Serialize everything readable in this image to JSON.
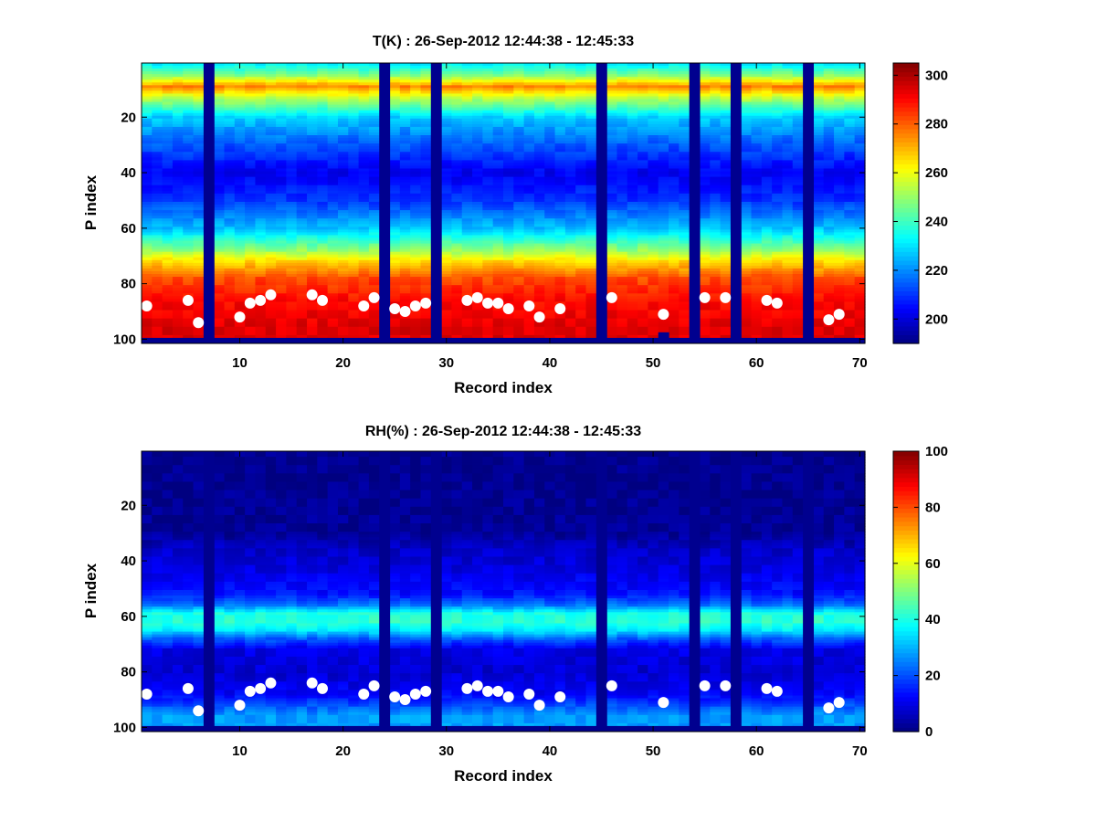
{
  "chart_data": [
    {
      "type": "heatmap",
      "title": "T(K) : 26-Sep-2012 12:44:38 - 12:45:33",
      "xlabel": "Record index",
      "ylabel": "P index",
      "xlim": [
        0.5,
        70.5
      ],
      "ylim": [
        0.5,
        101.5
      ],
      "y_reversed": true,
      "xticks": [
        10,
        20,
        30,
        40,
        50,
        60,
        70
      ],
      "yticks": [
        20,
        40,
        60,
        80,
        100
      ],
      "colormap": "jet",
      "clim": [
        190,
        305
      ],
      "colorbar_ticks": [
        200,
        220,
        240,
        260,
        280,
        300
      ],
      "missing_records": [
        7,
        24,
        29,
        45,
        54,
        58,
        65
      ],
      "profile_model": {
        "p": [
          1,
          5,
          9,
          13,
          20,
          30,
          40,
          50,
          60,
          68,
          72,
          78,
          86,
          96
        ],
        "value": [
          232,
          248,
          276,
          255,
          228,
          214,
          203,
          210,
          226,
          250,
          266,
          282,
          290,
          294
        ]
      },
      "bottom_level_by_record": [
        99,
        99,
        99,
        99,
        99,
        99,
        99,
        99,
        99,
        99,
        99,
        99,
        99,
        99,
        99,
        99,
        99,
        99,
        99,
        99,
        99,
        99,
        99,
        99,
        99,
        99,
        99,
        99,
        99,
        99,
        99,
        99,
        99,
        99,
        99,
        99,
        99,
        99,
        99,
        99,
        99,
        99,
        99,
        99,
        99,
        99,
        99,
        99,
        99,
        99,
        97,
        99,
        99,
        99,
        99,
        99,
        99,
        99,
        99,
        99,
        99,
        99,
        99,
        99,
        99,
        99,
        99,
        99,
        99,
        99
      ],
      "surface_points": [
        {
          "record": 1,
          "p": 88
        },
        {
          "record": 5,
          "p": 86
        },
        {
          "record": 6,
          "p": 94
        },
        {
          "record": 10,
          "p": 92
        },
        {
          "record": 11,
          "p": 87
        },
        {
          "record": 12,
          "p": 86
        },
        {
          "record": 13,
          "p": 84
        },
        {
          "record": 17,
          "p": 84
        },
        {
          "record": 18,
          "p": 86
        },
        {
          "record": 22,
          "p": 88
        },
        {
          "record": 23,
          "p": 85
        },
        {
          "record": 25,
          "p": 89
        },
        {
          "record": 26,
          "p": 90
        },
        {
          "record": 27,
          "p": 88
        },
        {
          "record": 28,
          "p": 87
        },
        {
          "record": 32,
          "p": 86
        },
        {
          "record": 33,
          "p": 85
        },
        {
          "record": 34,
          "p": 87
        },
        {
          "record": 35,
          "p": 87
        },
        {
          "record": 36,
          "p": 89
        },
        {
          "record": 38,
          "p": 88
        },
        {
          "record": 39,
          "p": 92
        },
        {
          "record": 41,
          "p": 89
        },
        {
          "record": 46,
          "p": 85
        },
        {
          "record": 51,
          "p": 91
        },
        {
          "record": 55,
          "p": 85
        },
        {
          "record": 57,
          "p": 85
        },
        {
          "record": 61,
          "p": 86
        },
        {
          "record": 62,
          "p": 87
        },
        {
          "record": 67,
          "p": 93
        },
        {
          "record": 68,
          "p": 91
        }
      ]
    },
    {
      "type": "heatmap",
      "title": "RH(%) : 26-Sep-2012 12:44:38 - 12:45:33",
      "xlabel": "Record index",
      "ylabel": "P index",
      "xlim": [
        0.5,
        70.5
      ],
      "ylim": [
        0.5,
        101.5
      ],
      "y_reversed": true,
      "xticks": [
        10,
        20,
        30,
        40,
        50,
        60,
        70
      ],
      "yticks": [
        20,
        40,
        60,
        80,
        100
      ],
      "colormap": "jet",
      "clim": [
        0,
        100
      ],
      "colorbar_ticks": [
        0,
        20,
        40,
        60,
        80,
        100
      ],
      "missing_records": [
        7,
        24,
        29,
        45,
        54,
        58,
        65
      ],
      "profile_model": {
        "p": [
          1,
          30,
          36,
          44,
          52,
          56,
          59,
          62,
          65,
          68,
          72,
          80,
          88,
          96
        ],
        "value": [
          1,
          2,
          7,
          10,
          14,
          24,
          40,
          42,
          36,
          22,
          10,
          8,
          12,
          28
        ]
      },
      "bottom_level_by_record": [
        99,
        99,
        99,
        99,
        99,
        99,
        99,
        99,
        99,
        99,
        99,
        99,
        99,
        99,
        99,
        99,
        99,
        99,
        99,
        99,
        99,
        99,
        99,
        99,
        99,
        99,
        99,
        99,
        99,
        99,
        99,
        99,
        99,
        99,
        99,
        99,
        99,
        99,
        99,
        99,
        99,
        99,
        99,
        99,
        99,
        99,
        99,
        99,
        99,
        99,
        99,
        99,
        99,
        99,
        99,
        99,
        99,
        99,
        99,
        99,
        99,
        99,
        99,
        99,
        99,
        99,
        99,
        99,
        99,
        99
      ],
      "surface_points": [
        {
          "record": 1,
          "p": 88
        },
        {
          "record": 5,
          "p": 86
        },
        {
          "record": 6,
          "p": 94
        },
        {
          "record": 10,
          "p": 92
        },
        {
          "record": 11,
          "p": 87
        },
        {
          "record": 12,
          "p": 86
        },
        {
          "record": 13,
          "p": 84
        },
        {
          "record": 17,
          "p": 84
        },
        {
          "record": 18,
          "p": 86
        },
        {
          "record": 22,
          "p": 88
        },
        {
          "record": 23,
          "p": 85
        },
        {
          "record": 25,
          "p": 89
        },
        {
          "record": 26,
          "p": 90
        },
        {
          "record": 27,
          "p": 88
        },
        {
          "record": 28,
          "p": 87
        },
        {
          "record": 32,
          "p": 86
        },
        {
          "record": 33,
          "p": 85
        },
        {
          "record": 34,
          "p": 87
        },
        {
          "record": 35,
          "p": 87
        },
        {
          "record": 36,
          "p": 89
        },
        {
          "record": 38,
          "p": 88
        },
        {
          "record": 39,
          "p": 92
        },
        {
          "record": 41,
          "p": 89
        },
        {
          "record": 46,
          "p": 85
        },
        {
          "record": 51,
          "p": 91
        },
        {
          "record": 55,
          "p": 85
        },
        {
          "record": 57,
          "p": 85
        },
        {
          "record": 61,
          "p": 86
        },
        {
          "record": 62,
          "p": 87
        },
        {
          "record": 67,
          "p": 93
        },
        {
          "record": 68,
          "p": 91
        }
      ]
    }
  ]
}
